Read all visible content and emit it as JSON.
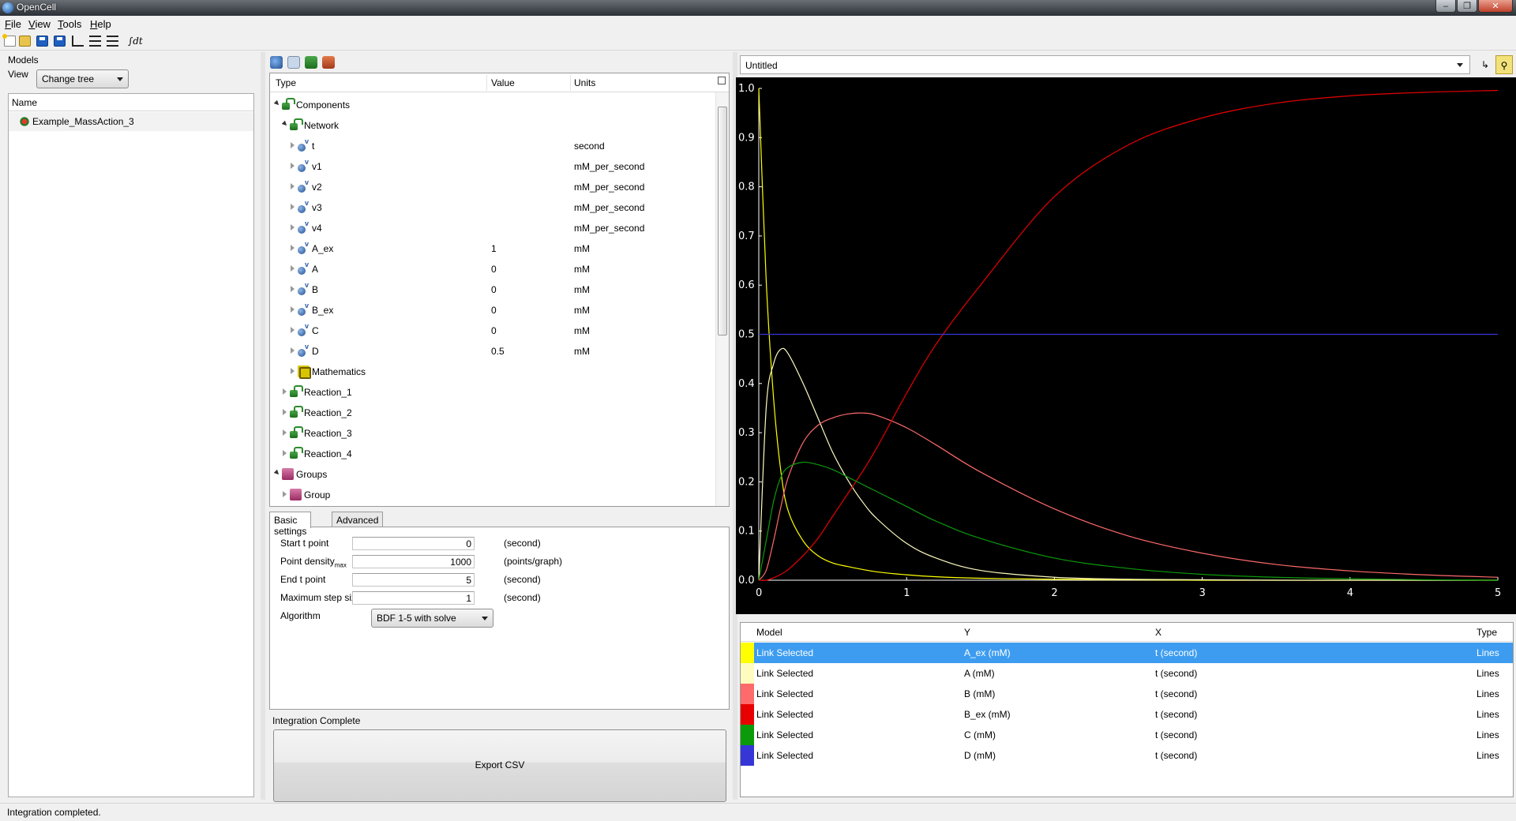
{
  "window": {
    "title": "OpenCell"
  },
  "menu": [
    "File",
    "View",
    "Tools",
    "Help"
  ],
  "toolbar": {
    "integrate_label": "∫dt"
  },
  "left": {
    "models_label": "Models",
    "view_label": "View",
    "view_select": "Change tree",
    "tree_header": "Name",
    "models": [
      {
        "name": "Example_MassAction_3"
      }
    ]
  },
  "variables": {
    "headers": {
      "type": "Type",
      "value": "Value",
      "units": "Units"
    },
    "rows": [
      {
        "label": "Components",
        "value": "",
        "units": "",
        "level": 0,
        "icon": "component-icon",
        "expanded": true
      },
      {
        "label": "Network",
        "value": "",
        "units": "",
        "level": 1,
        "icon": "component-icon",
        "expanded": true
      },
      {
        "label": "t",
        "value": "",
        "units": "second",
        "level": 2,
        "icon": "variable-icon",
        "expanded": false
      },
      {
        "label": "v1",
        "value": "",
        "units": "mM_per_second",
        "level": 2,
        "icon": "variable-icon",
        "expanded": false
      },
      {
        "label": "v2",
        "value": "",
        "units": "mM_per_second",
        "level": 2,
        "icon": "variable-icon",
        "expanded": false
      },
      {
        "label": "v3",
        "value": "",
        "units": "mM_per_second",
        "level": 2,
        "icon": "variable-icon",
        "expanded": false
      },
      {
        "label": "v4",
        "value": "",
        "units": "mM_per_second",
        "level": 2,
        "icon": "variable-icon",
        "expanded": false
      },
      {
        "label": "A_ex",
        "value": "1",
        "units": "mM",
        "level": 2,
        "icon": "variable-icon",
        "expanded": false
      },
      {
        "label": "A",
        "value": "0",
        "units": "mM",
        "level": 2,
        "icon": "variable-icon",
        "expanded": false
      },
      {
        "label": "B",
        "value": "0",
        "units": "mM",
        "level": 2,
        "icon": "variable-icon",
        "expanded": false
      },
      {
        "label": "B_ex",
        "value": "0",
        "units": "mM",
        "level": 2,
        "icon": "variable-icon",
        "expanded": false
      },
      {
        "label": "C",
        "value": "0",
        "units": "mM",
        "level": 2,
        "icon": "variable-icon",
        "expanded": false
      },
      {
        "label": "D",
        "value": "0.5",
        "units": "mM",
        "level": 2,
        "icon": "variable-icon",
        "expanded": false
      },
      {
        "label": "Mathematics",
        "value": "",
        "units": "",
        "level": 2,
        "icon": "mathematics-icon",
        "expanded": false
      },
      {
        "label": "Reaction_1",
        "value": "",
        "units": "",
        "level": 1,
        "icon": "component-icon",
        "expanded": false
      },
      {
        "label": "Reaction_2",
        "value": "",
        "units": "",
        "level": 1,
        "icon": "component-icon",
        "expanded": false
      },
      {
        "label": "Reaction_3",
        "value": "",
        "units": "",
        "level": 1,
        "icon": "component-icon",
        "expanded": false
      },
      {
        "label": "Reaction_4",
        "value": "",
        "units": "",
        "level": 1,
        "icon": "component-icon",
        "expanded": false
      },
      {
        "label": "Groups",
        "value": "",
        "units": "",
        "level": 0,
        "icon": "group-icon",
        "expanded": true
      },
      {
        "label": "Group",
        "value": "",
        "units": "",
        "level": 1,
        "icon": "group-icon",
        "expanded": false
      }
    ]
  },
  "settings": {
    "tabs": [
      "Basic settings",
      "Advanced settings"
    ],
    "active_tab": "Basic settings",
    "fields": [
      {
        "label": "Start t point",
        "sub": "",
        "value": "0",
        "unit": "(second)"
      },
      {
        "label": "Point density",
        "sub": "max",
        "value": "1000",
        "unit": "(points/graph)"
      },
      {
        "label": "End t point",
        "sub": "",
        "value": "5",
        "unit": "(second)"
      },
      {
        "label": "Maximum step size",
        "sub": "",
        "value": "1",
        "unit": "(second)"
      }
    ],
    "algorithm_label": "Algorithm",
    "algorithm_value": "BDF 1-5 with solve"
  },
  "integration_status": "Integration Complete",
  "export_button": "Export CSV",
  "plot": {
    "selector": "Untitled",
    "legend_headers": {
      "model": "Model",
      "y": "Y",
      "x": "X",
      "type": "Type"
    },
    "traces": [
      {
        "model": "Link Selected",
        "y": "A_ex (mM)",
        "x": "t (second)",
        "type": "Lines",
        "color": "#ffff00",
        "selected": true
      },
      {
        "model": "Link Selected",
        "y": "A (mM)",
        "x": "t (second)",
        "type": "Lines",
        "color": "#fffcc0",
        "selected": false
      },
      {
        "model": "Link Selected",
        "y": "B (mM)",
        "x": "t (second)",
        "type": "Lines",
        "color": "#ff6a6a",
        "selected": false
      },
      {
        "model": "Link Selected",
        "y": "B_ex (mM)",
        "x": "t (second)",
        "type": "Lines",
        "color": "#e80000",
        "selected": false
      },
      {
        "model": "Link Selected",
        "y": "C (mM)",
        "x": "t (second)",
        "type": "Lines",
        "color": "#0a9a0a",
        "selected": false
      },
      {
        "model": "Link Selected",
        "y": "D (mM)",
        "x": "t (second)",
        "type": "Lines",
        "color": "#3636d6",
        "selected": false
      }
    ]
  },
  "chart_data": {
    "type": "line",
    "title": "",
    "xlabel": "",
    "ylabel": "",
    "xlim": [
      0,
      5
    ],
    "ylim": [
      0,
      1
    ],
    "x_ticks": [
      "0",
      "1",
      "2",
      "3",
      "4",
      "5"
    ],
    "y_ticks": [
      "0.0",
      "0.1",
      "0.2",
      "0.3",
      "0.4",
      "0.5",
      "0.6",
      "0.7",
      "0.8",
      "0.9",
      "1.0"
    ],
    "x": [
      0,
      0.05,
      0.1,
      0.15,
      0.2,
      0.3,
      0.4,
      0.5,
      0.6,
      0.7,
      0.8,
      1.0,
      1.2,
      1.5,
      2.0,
      2.5,
      3.0,
      3.5,
      4.0,
      4.5,
      5.0
    ],
    "series": [
      {
        "name": "A_ex (mM)",
        "color": "#ffff00",
        "values": [
          1.0,
          0.61,
          0.37,
          0.22,
          0.14,
          0.08,
          0.05,
          0.035,
          0.028,
          0.022,
          0.017,
          0.011,
          0.007,
          0.004,
          0.002,
          0.001,
          0.0,
          0.0,
          0.0,
          0.0,
          0.0
        ]
      },
      {
        "name": "A (mM)",
        "color": "#fffcc0",
        "values": [
          0.0,
          0.35,
          0.44,
          0.47,
          0.46,
          0.4,
          0.33,
          0.26,
          0.205,
          0.16,
          0.125,
          0.075,
          0.045,
          0.02,
          0.006,
          0.002,
          0.001,
          0.0,
          0.0,
          0.0,
          0.0
        ]
      },
      {
        "name": "B (mM)",
        "color": "#ff6a6a",
        "values": [
          0.0,
          0.02,
          0.08,
          0.15,
          0.21,
          0.28,
          0.315,
          0.33,
          0.338,
          0.34,
          0.335,
          0.31,
          0.275,
          0.22,
          0.145,
          0.09,
          0.055,
          0.032,
          0.019,
          0.011,
          0.006
        ]
      },
      {
        "name": "B_ex (mM)",
        "color": "#e80000",
        "values": [
          0.0,
          0.0,
          0.005,
          0.012,
          0.022,
          0.05,
          0.085,
          0.13,
          0.175,
          0.22,
          0.27,
          0.38,
          0.48,
          0.6,
          0.78,
          0.885,
          0.94,
          0.97,
          0.985,
          0.992,
          0.996
        ]
      },
      {
        "name": "C (mM)",
        "color": "#0a9a0a",
        "values": [
          0.0,
          0.08,
          0.16,
          0.21,
          0.23,
          0.24,
          0.235,
          0.225,
          0.21,
          0.195,
          0.18,
          0.15,
          0.12,
          0.085,
          0.045,
          0.024,
          0.012,
          0.006,
          0.003,
          0.001,
          0.0
        ]
      },
      {
        "name": "D (mM)",
        "color": "#3636d6",
        "values": [
          0.5,
          0.5,
          0.5,
          0.5,
          0.5,
          0.5,
          0.5,
          0.5,
          0.5,
          0.5,
          0.5,
          0.5,
          0.5,
          0.5,
          0.5,
          0.5,
          0.5,
          0.5,
          0.5,
          0.5,
          0.5
        ]
      }
    ]
  },
  "status_bar": "Integration completed."
}
